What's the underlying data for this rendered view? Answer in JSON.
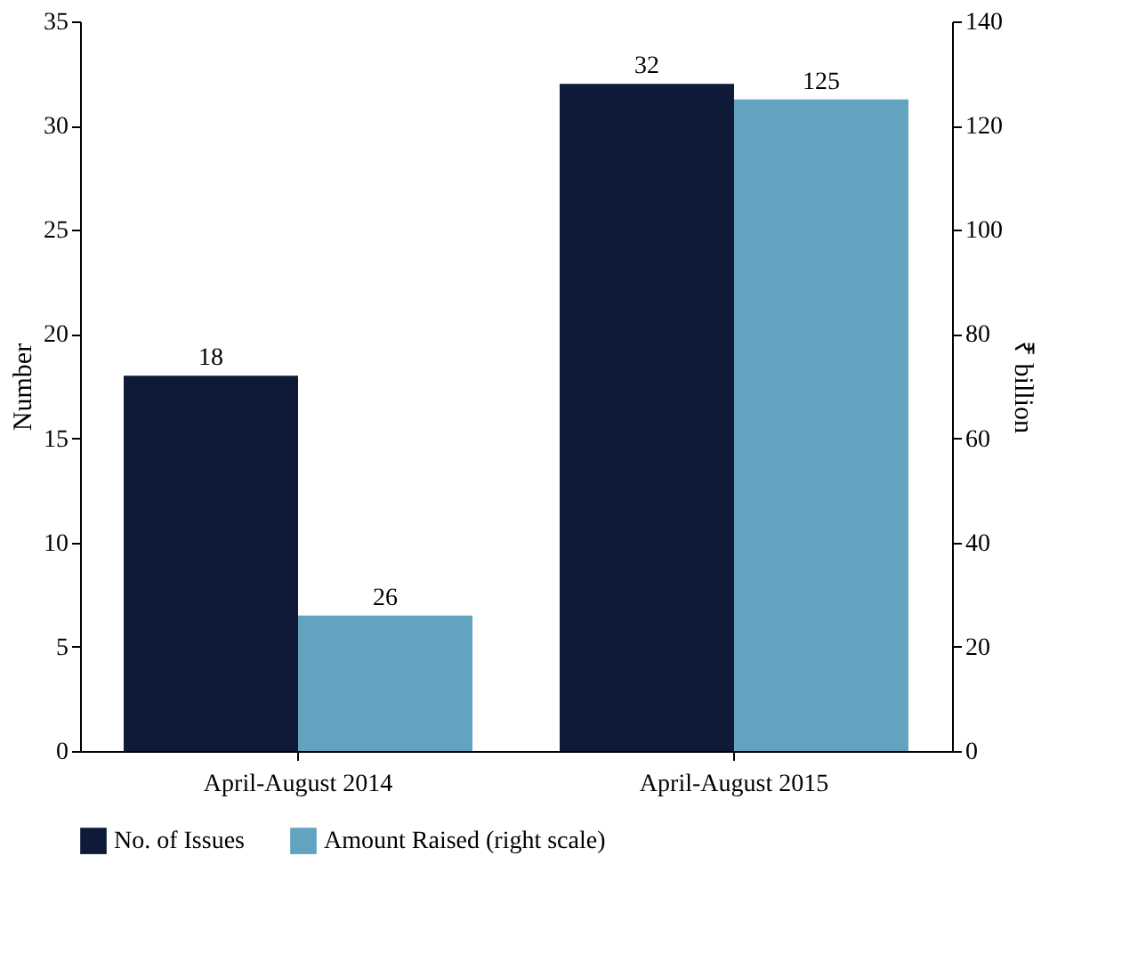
{
  "chart_data": {
    "type": "bar",
    "ylabel": "Number",
    "y2label": "₹ billion",
    "categories": [
      "April-August 2014",
      "April-August 2015"
    ],
    "series": [
      {
        "name": "No. of Issues",
        "color": "#0e1a38",
        "values": [
          18,
          32
        ]
      },
      {
        "name": "Amount Raised (right scale)",
        "color": "#62a3c0",
        "values": [
          26,
          125
        ],
        "axis": "y2"
      }
    ],
    "ylim": [
      0,
      35
    ],
    "yticks": [
      0,
      5,
      10,
      15,
      20,
      25,
      30,
      35
    ],
    "y2lim": [
      0,
      140
    ],
    "y2ticks": [
      0,
      20,
      40,
      60,
      80,
      100,
      120,
      140
    ],
    "data_labels": true,
    "grid": false,
    "legend": "bottom"
  }
}
